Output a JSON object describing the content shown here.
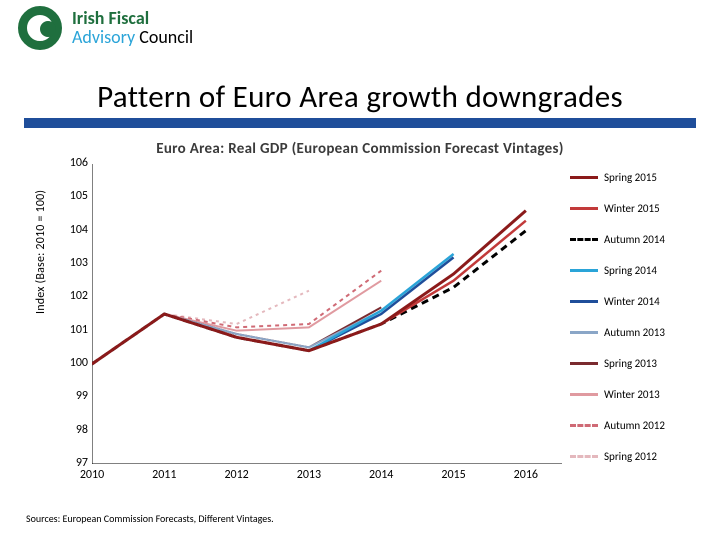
{
  "header": {
    "logo_line1": "Irish Fiscal",
    "logo_line2_a": "Advisory ",
    "logo_line2_b": "Council"
  },
  "title": "Pattern of Euro Area growth downgrades",
  "chart": {
    "title": "Euro Area: Real GDP (European Commission Forecast Vintages)",
    "ylabel": "Index (Base: 2010 = 100)",
    "x_years": [
      2010,
      2011,
      2012,
      2013,
      2014,
      2015,
      2016
    ],
    "x_domain": [
      2010,
      2016.5
    ],
    "ylim": [
      97,
      106
    ],
    "ytick_step": 1,
    "background": "#ffffff",
    "axis_color": "#000000",
    "axis_width": 1,
    "series": [
      {
        "name": "Spring 2015",
        "color": "#8b1a1a",
        "dash": "",
        "w": 3,
        "pts": [
          [
            2010,
            100
          ],
          [
            2011,
            101.5
          ],
          [
            2012,
            100.8
          ],
          [
            2013,
            100.4
          ],
          [
            2014,
            101.2
          ],
          [
            2015,
            102.7
          ],
          [
            2016,
            104.6
          ]
        ]
      },
      {
        "name": "Winter 2015",
        "color": "#c23a3a",
        "dash": "",
        "w": 2.5,
        "pts": [
          [
            2010,
            100
          ],
          [
            2011,
            101.5
          ],
          [
            2012,
            100.8
          ],
          [
            2013,
            100.4
          ],
          [
            2014,
            101.2
          ],
          [
            2015,
            102.5
          ],
          [
            2016,
            104.3
          ]
        ]
      },
      {
        "name": "Autumn 2014",
        "color": "#000000",
        "dash": "7 5",
        "w": 3,
        "pts": [
          [
            2010,
            100
          ],
          [
            2011,
            101.5
          ],
          [
            2012,
            100.8
          ],
          [
            2013,
            100.4
          ],
          [
            2014,
            101.2
          ],
          [
            2015,
            102.3
          ],
          [
            2016,
            104.0
          ]
        ]
      },
      {
        "name": "Spring 2014",
        "color": "#2aa4d8",
        "dash": "",
        "w": 2.5,
        "pts": [
          [
            2010,
            100
          ],
          [
            2011,
            101.5
          ],
          [
            2012,
            100.8
          ],
          [
            2013,
            100.4
          ],
          [
            2014,
            101.6
          ],
          [
            2015,
            103.3
          ]
        ]
      },
      {
        "name": "Winter 2014",
        "color": "#1f4e9a",
        "dash": "",
        "w": 2.5,
        "pts": [
          [
            2010,
            100
          ],
          [
            2011,
            101.5
          ],
          [
            2012,
            100.8
          ],
          [
            2013,
            100.4
          ],
          [
            2014,
            101.5
          ],
          [
            2015,
            103.2
          ]
        ]
      },
      {
        "name": "Autumn 2013",
        "color": "#8aa6c7",
        "dash": "",
        "w": 2,
        "pts": [
          [
            2010,
            100
          ],
          [
            2011,
            101.5
          ],
          [
            2012,
            100.9
          ],
          [
            2013,
            100.5
          ],
          [
            2014,
            101.6
          ],
          [
            2015,
            103.3
          ]
        ]
      },
      {
        "name": "Spring 2013",
        "color": "#7a2a2f",
        "dash": "",
        "w": 2,
        "pts": [
          [
            2010,
            100
          ],
          [
            2011,
            101.5
          ],
          [
            2012,
            100.9
          ],
          [
            2013,
            100.5
          ],
          [
            2014,
            101.7
          ]
        ]
      },
      {
        "name": "Winter 2013",
        "color": "#e09aa0",
        "dash": "",
        "w": 2,
        "pts": [
          [
            2010,
            100
          ],
          [
            2011,
            101.5
          ],
          [
            2012,
            101.0
          ],
          [
            2013,
            101.1
          ],
          [
            2014,
            102.5
          ]
        ]
      },
      {
        "name": "Autumn 2012",
        "color": "#cf6a75",
        "dash": "4 4",
        "w": 2,
        "pts": [
          [
            2010,
            100
          ],
          [
            2011,
            101.5
          ],
          [
            2012,
            101.1
          ],
          [
            2013,
            101.2
          ],
          [
            2014,
            102.8
          ]
        ]
      },
      {
        "name": "Spring 2012",
        "color": "#e4b8bd",
        "dash": "3 4",
        "w": 2,
        "pts": [
          [
            2010,
            100
          ],
          [
            2011,
            101.5
          ],
          [
            2012,
            101.2
          ],
          [
            2013,
            102.2
          ]
        ]
      }
    ]
  },
  "source": "Sources: European Commission Forecasts, Different Vintages."
}
